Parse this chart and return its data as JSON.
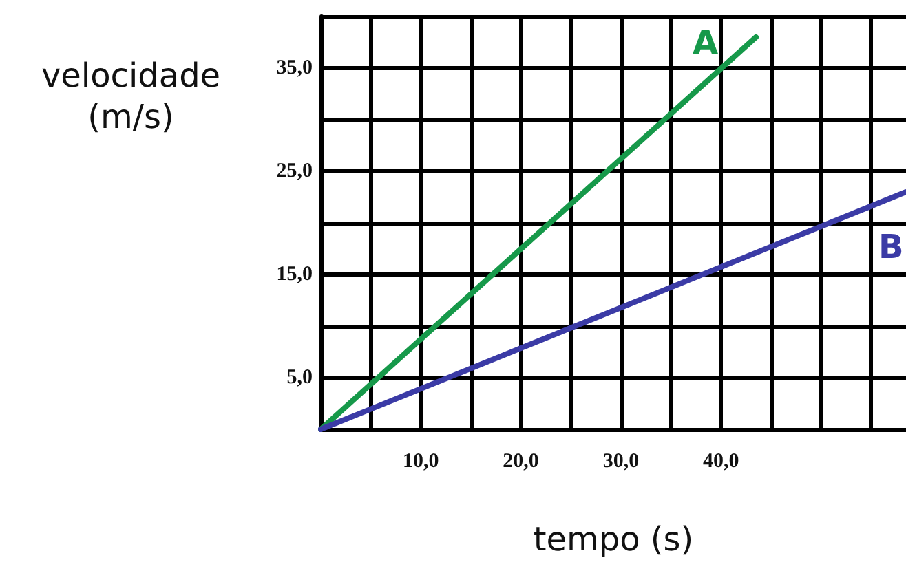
{
  "chart_data": {
    "type": "line",
    "xlabel": "tempo (s)",
    "ylabel": "velocidade\n(m/s)",
    "series": [
      {
        "name": "A",
        "color": "#16994a",
        "x": [
          0,
          43.5
        ],
        "values": [
          0,
          38
        ]
      },
      {
        "name": "B",
        "color": "#3b3ba6",
        "x": [
          0,
          58.5
        ],
        "values": [
          0,
          23
        ]
      }
    ],
    "xlim": [
      0,
      58.5
    ],
    "xticks": [
      {
        "value": 0,
        "label": null
      },
      {
        "value": 5,
        "label": null
      },
      {
        "value": 10,
        "label": "10,0"
      },
      {
        "value": 15,
        "label": null
      },
      {
        "value": 20,
        "label": "20,0"
      },
      {
        "value": 25,
        "label": null
      },
      {
        "value": 30,
        "label": "30,0"
      },
      {
        "value": 35,
        "label": null
      },
      {
        "value": 40,
        "label": "40,0"
      },
      {
        "value": 45,
        "label": null
      },
      {
        "value": 50,
        "label": null
      },
      {
        "value": 55,
        "label": null
      }
    ],
    "ylim": [
      0,
      40
    ],
    "yticks": [
      {
        "value": 0,
        "label": null
      },
      {
        "value": 5,
        "label": "5,0"
      },
      {
        "value": 10,
        "label": null
      },
      {
        "value": 15,
        "label": "15,0"
      },
      {
        "value": 20,
        "label": null
      },
      {
        "value": 25,
        "label": "25,0"
      },
      {
        "value": 30,
        "label": null
      },
      {
        "value": 35,
        "label": "35,0"
      },
      {
        "value": 40,
        "label": null
      }
    ],
    "grid": true,
    "marker": "none",
    "line_style": "solid"
  }
}
